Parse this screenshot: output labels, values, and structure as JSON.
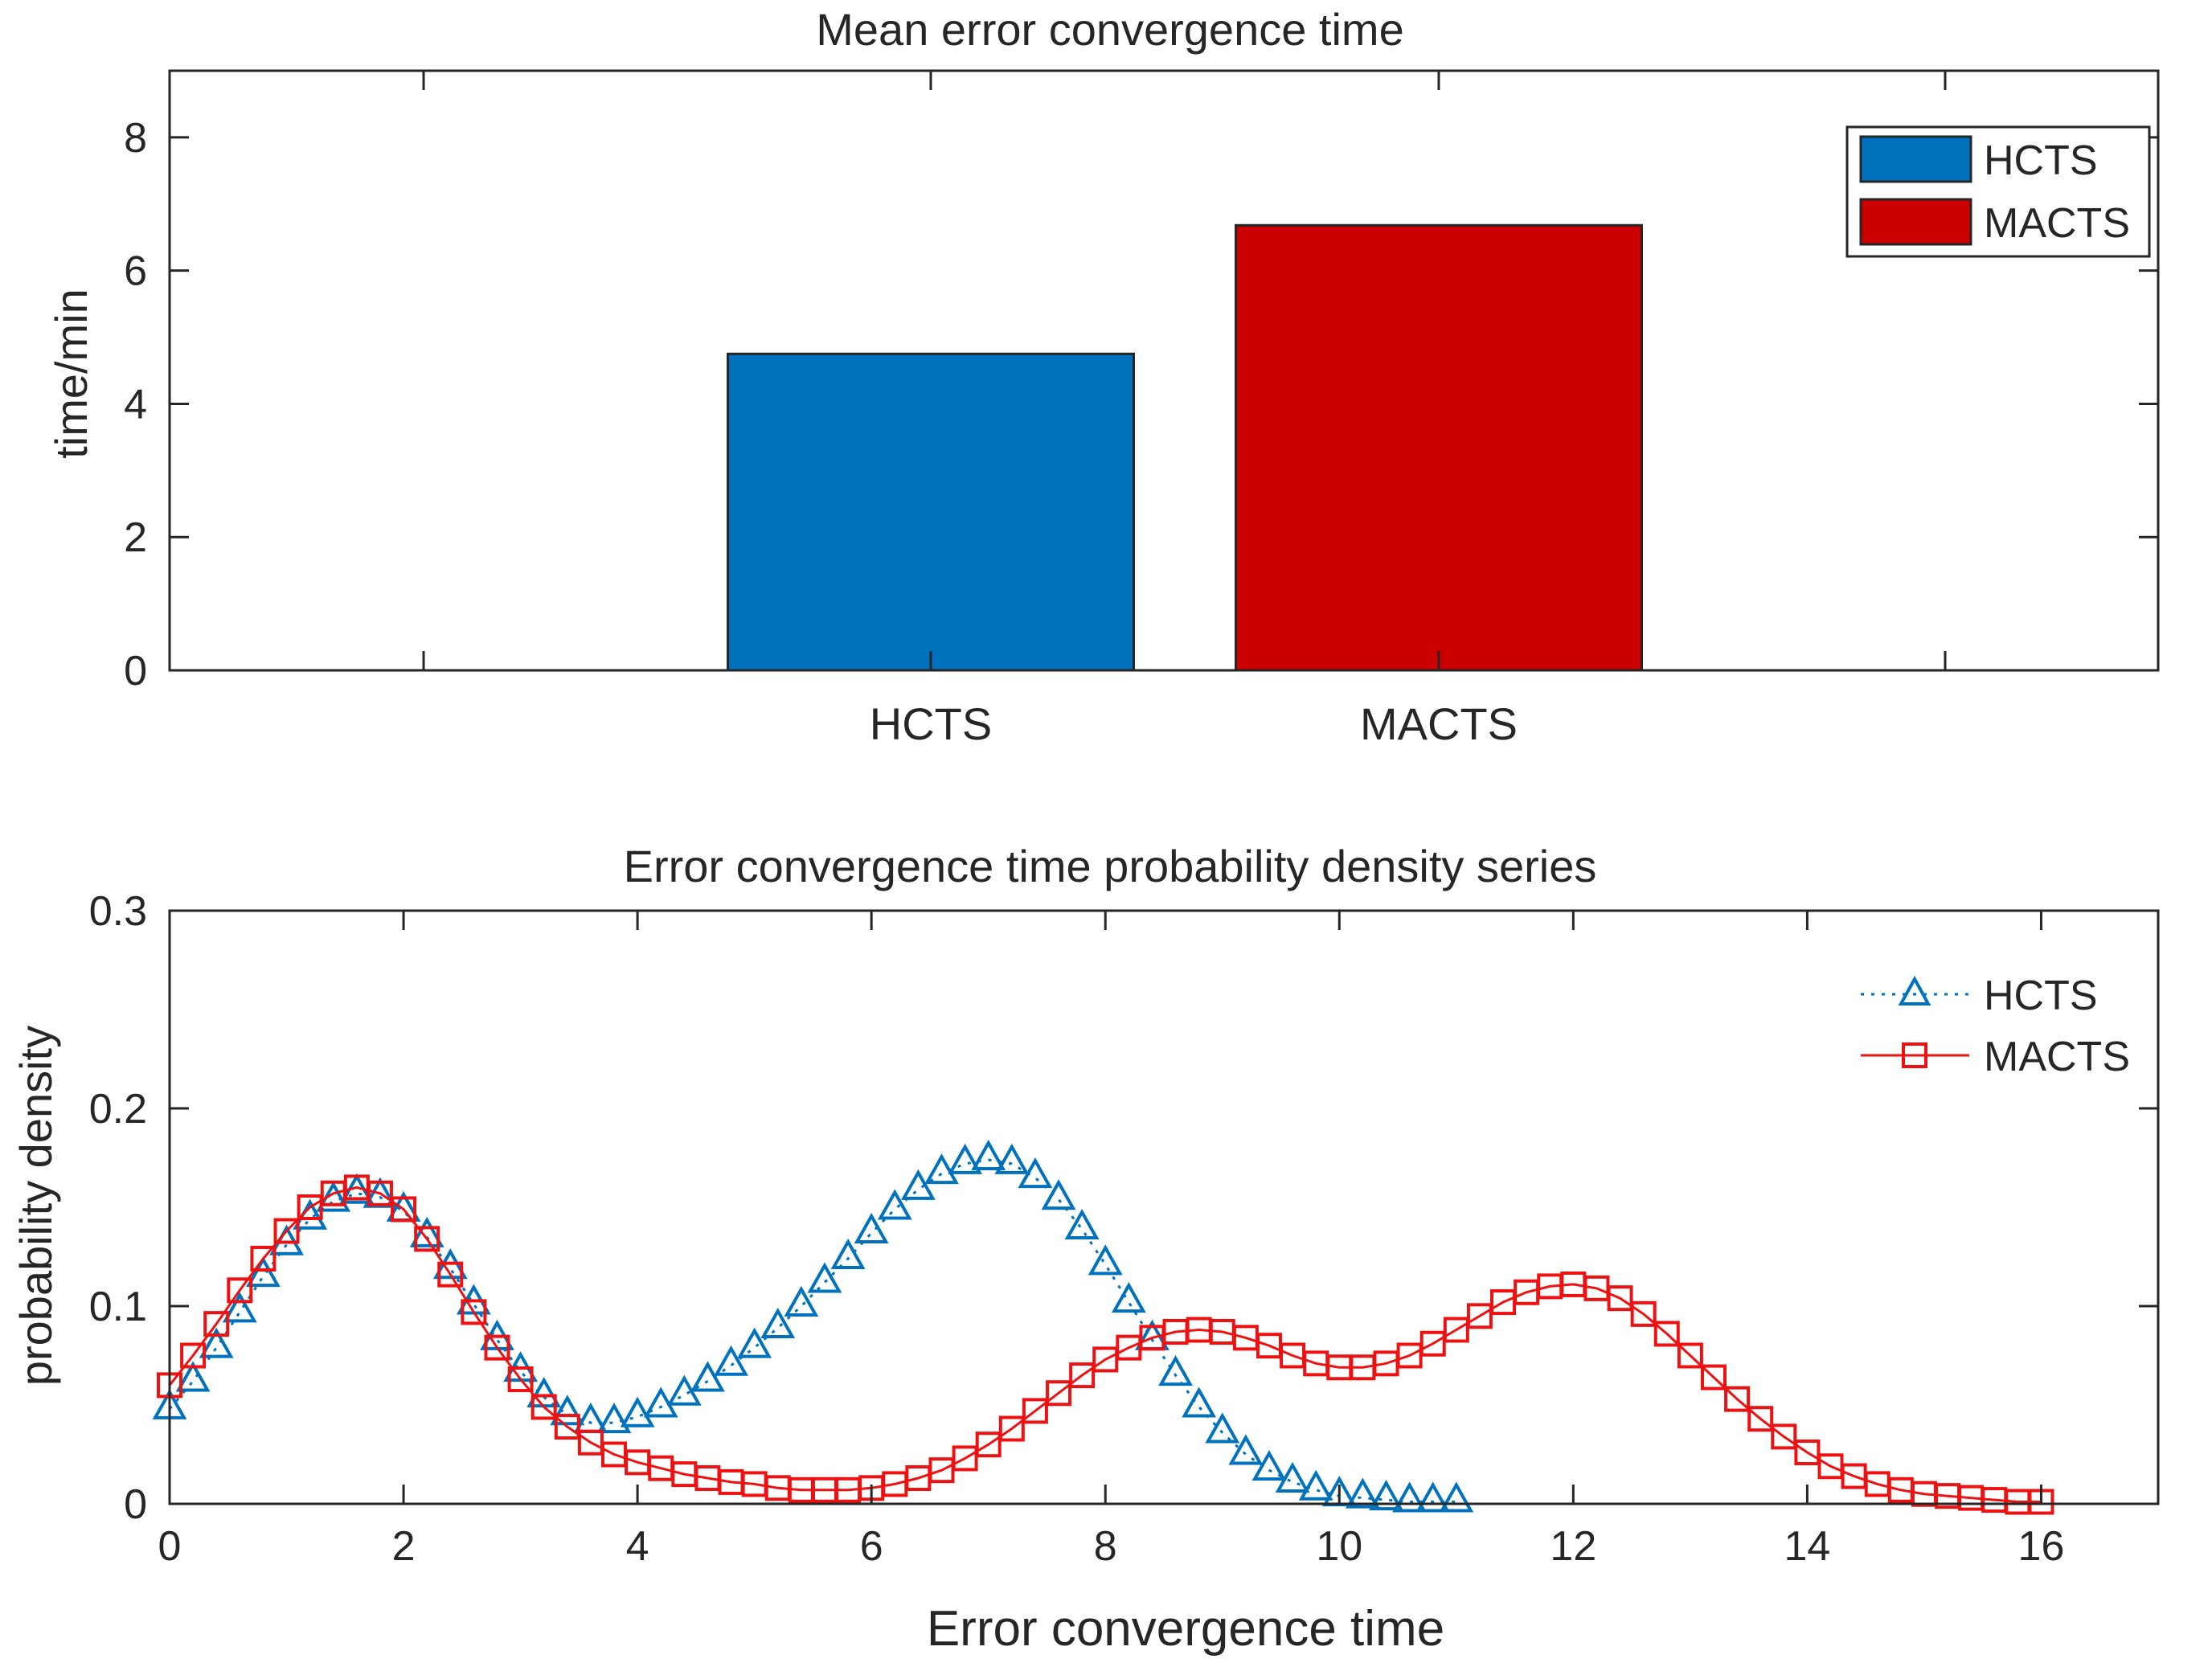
{
  "chart_data": [
    {
      "type": "bar",
      "title": "Mean error convergence time",
      "xlabel": "",
      "ylabel": "time/min",
      "categories": [
        "HCTS",
        "MACTS"
      ],
      "values": [
        4.75,
        6.68
      ],
      "colors": [
        "#0072BD",
        "#CC0000"
      ],
      "ylim": [
        0,
        9
      ],
      "yticks": [
        0,
        2,
        4,
        6,
        8
      ],
      "grid": false,
      "legend": {
        "placement": "top-right",
        "entries": [
          "HCTS",
          "MACTS"
        ]
      }
    },
    {
      "type": "line",
      "title": "Error convergence time probability density series",
      "xlabel": "Error convergence time",
      "ylabel": "probability density",
      "xlim": [
        0,
        17
      ],
      "ylim": [
        0,
        0.3
      ],
      "xticks": [
        0,
        2,
        4,
        6,
        8,
        10,
        12,
        14,
        16
      ],
      "yticks": [
        0,
        0.1,
        0.2,
        0.3
      ],
      "grid": false,
      "legend": {
        "placement": "top-right",
        "entries": [
          "HCTS",
          "MACTS"
        ]
      },
      "series": [
        {
          "name": "HCTS",
          "color": "#0072BD",
          "marker": "triangle",
          "line": "dotted",
          "x": [
            0.0,
            0.2,
            0.4,
            0.6,
            0.8,
            1.0,
            1.2,
            1.4,
            1.6,
            1.8,
            2.0,
            2.2,
            2.4,
            2.6,
            2.8,
            3.0,
            3.2,
            3.4,
            3.6,
            3.8,
            4.0,
            4.2,
            4.4,
            4.6,
            4.8,
            5.0,
            5.2,
            5.4,
            5.6,
            5.8,
            6.0,
            6.2,
            6.4,
            6.6,
            6.8,
            7.0,
            7.2,
            7.4,
            7.6,
            7.8,
            8.0,
            8.2,
            8.4,
            8.6,
            8.8,
            9.0,
            9.2,
            9.4,
            9.6,
            9.8,
            10.0,
            10.2,
            10.4,
            10.6,
            10.8,
            11.0
          ],
          "y": [
            0.048,
            0.062,
            0.079,
            0.097,
            0.115,
            0.131,
            0.144,
            0.153,
            0.157,
            0.155,
            0.148,
            0.135,
            0.119,
            0.101,
            0.083,
            0.067,
            0.054,
            0.045,
            0.041,
            0.041,
            0.044,
            0.049,
            0.055,
            0.062,
            0.07,
            0.079,
            0.089,
            0.1,
            0.112,
            0.124,
            0.137,
            0.149,
            0.159,
            0.167,
            0.172,
            0.174,
            0.172,
            0.165,
            0.154,
            0.139,
            0.121,
            0.102,
            0.083,
            0.065,
            0.049,
            0.036,
            0.025,
            0.017,
            0.011,
            0.007,
            0.004,
            0.003,
            0.002,
            0.001,
            0.001,
            0.001
          ]
        },
        {
          "name": "MACTS",
          "color": "#EE1111",
          "marker": "square",
          "line": "solid",
          "x": [
            0.0,
            0.2,
            0.4,
            0.6,
            0.8,
            1.0,
            1.2,
            1.4,
            1.6,
            1.8,
            2.0,
            2.2,
            2.4,
            2.6,
            2.8,
            3.0,
            3.2,
            3.4,
            3.6,
            3.8,
            4.0,
            4.2,
            4.4,
            4.6,
            4.8,
            5.0,
            5.2,
            5.4,
            5.6,
            5.8,
            6.0,
            6.2,
            6.4,
            6.6,
            6.8,
            7.0,
            7.2,
            7.4,
            7.6,
            7.8,
            8.0,
            8.2,
            8.4,
            8.6,
            8.8,
            9.0,
            9.2,
            9.4,
            9.6,
            9.8,
            10.0,
            10.2,
            10.4,
            10.6,
            10.8,
            11.0,
            11.2,
            11.4,
            11.6,
            11.8,
            12.0,
            12.2,
            12.4,
            12.6,
            12.8,
            13.0,
            13.2,
            13.4,
            13.6,
            13.8,
            14.0,
            14.2,
            14.4,
            14.6,
            14.8,
            15.0,
            15.2,
            15.4,
            15.6,
            15.8,
            16.0
          ],
          "y": [
            0.06,
            0.075,
            0.091,
            0.108,
            0.124,
            0.138,
            0.15,
            0.157,
            0.16,
            0.157,
            0.149,
            0.134,
            0.116,
            0.097,
            0.079,
            0.063,
            0.049,
            0.039,
            0.031,
            0.025,
            0.021,
            0.018,
            0.015,
            0.013,
            0.011,
            0.01,
            0.008,
            0.007,
            0.007,
            0.007,
            0.008,
            0.01,
            0.013,
            0.017,
            0.023,
            0.03,
            0.038,
            0.047,
            0.056,
            0.065,
            0.073,
            0.079,
            0.084,
            0.087,
            0.088,
            0.087,
            0.084,
            0.08,
            0.075,
            0.071,
            0.069,
            0.069,
            0.071,
            0.075,
            0.081,
            0.088,
            0.095,
            0.102,
            0.107,
            0.11,
            0.111,
            0.109,
            0.104,
            0.096,
            0.086,
            0.075,
            0.064,
            0.053,
            0.043,
            0.034,
            0.026,
            0.019,
            0.014,
            0.01,
            0.007,
            0.005,
            0.004,
            0.003,
            0.002,
            0.001,
            0.001
          ]
        }
      ]
    }
  ]
}
